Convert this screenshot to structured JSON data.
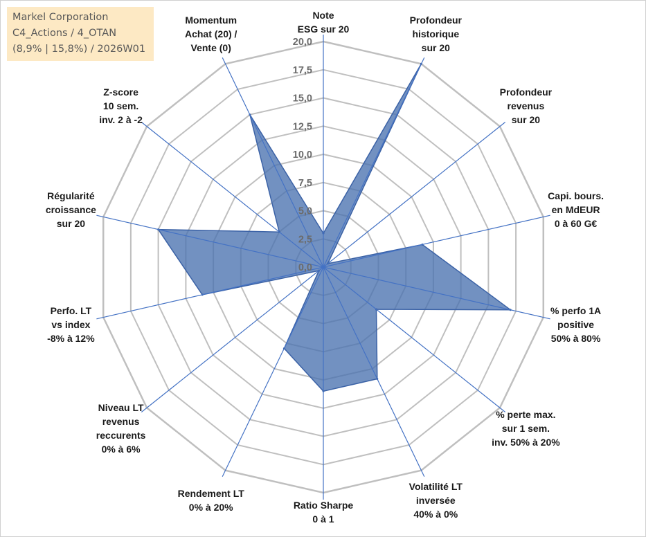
{
  "header": {
    "title_lines": [
      "Markel Corporation",
      "C4_Actions / 4_OTAN",
      "(8,9% | 15,8%) / 2026W01"
    ]
  },
  "colors": {
    "fill": "#4a72b0",
    "stroke": "#3b62a6",
    "grid": "#bfbfbf",
    "spoke": "#4472c4"
  },
  "chart_data": {
    "type": "radar",
    "title": "",
    "rlim": [
      0,
      20
    ],
    "rticks": [
      "0,0",
      "2,5",
      "5,0",
      "7,5",
      "10,0",
      "12,5",
      "15,0",
      "17,5",
      "20,0"
    ],
    "grid": true,
    "legend": "none",
    "axes": [
      [
        "Note",
        "ESG sur 20"
      ],
      [
        "Profondeur",
        "historique",
        "sur 20"
      ],
      [
        "Profondeur",
        "revenus",
        "sur 20"
      ],
      [
        "Capi. bours.",
        "en MdEUR",
        "0 à 60 G€"
      ],
      [
        "% perfo 1A",
        "positive",
        "50% à 80%"
      ],
      [
        "% perte max.",
        "sur 1 sem.",
        "inv. 50% à 20%"
      ],
      [
        "Volatilité LT",
        "inversée",
        "40% à 0%"
      ],
      [
        "Ratio Sharpe",
        "0 à 1"
      ],
      [
        "Rendement LT",
        "0% à 20%"
      ],
      [
        "Niveau LT",
        "revenus",
        "reccurents",
        "0% à 6%"
      ],
      [
        "Perfo. LT",
        "vs index",
        "-8% à 12%"
      ],
      [
        "Régularité",
        "croissance",
        "sur 20"
      ],
      [
        "Z-score",
        "10 sem.",
        "inv. 2 à -2"
      ],
      [
        "Momentum",
        "Achat (20) /",
        "Vente (0)"
      ]
    ],
    "series": [
      {
        "values": [
          3,
          20,
          0.5,
          9,
          17,
          6,
          11,
          11,
          8,
          0.5,
          11,
          15,
          5,
          15
        ]
      }
    ]
  }
}
